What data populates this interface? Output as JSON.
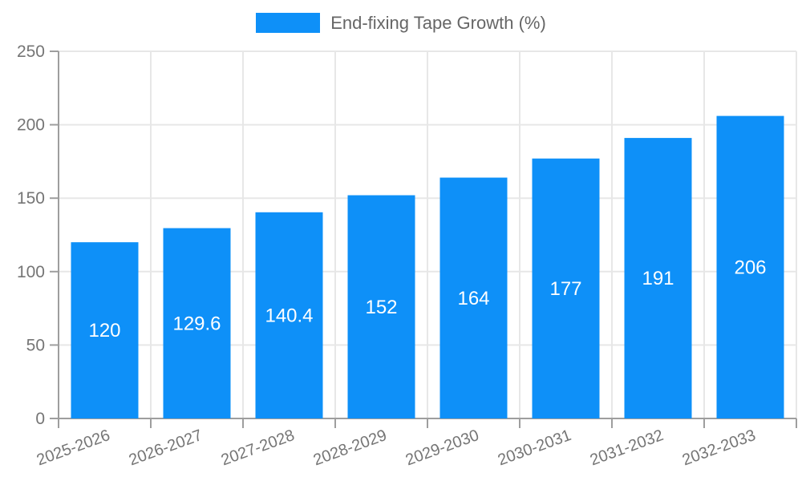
{
  "legend": {
    "position": "top-center",
    "items": [
      {
        "label": "End-fixing Tape Growth (%)",
        "swatch_color": "#0e90f8"
      }
    ]
  },
  "colors": {
    "bar": "#0e90f8",
    "axis": "#9e9e9e",
    "grid": "#e7e7e7",
    "tick_label": "#757575",
    "legend_label": "#666666",
    "bar_label": "#ffffff",
    "background": "#ffffff"
  },
  "chart_data": {
    "type": "bar",
    "title": "End-fixing Tape Growth (%)",
    "categories": [
      "2025-2026",
      "2026-2027",
      "2027-2028",
      "2028-2029",
      "2029-2030",
      "2030-2031",
      "2031-2032",
      "2032-2033"
    ],
    "values": [
      120,
      129.6,
      140.4,
      152,
      164,
      177,
      191,
      206
    ],
    "value_labels": [
      "120",
      "129.6",
      "140.4",
      "152",
      "164",
      "177",
      "191",
      "206"
    ],
    "xlabel": "",
    "ylabel": "",
    "ylim": [
      0,
      250
    ],
    "yticks": [
      0,
      50,
      100,
      150,
      200,
      250
    ],
    "grid": true,
    "legend_position": "top-center",
    "x_tick_rotation_deg": -20,
    "bar_value_labels_inside": true
  }
}
